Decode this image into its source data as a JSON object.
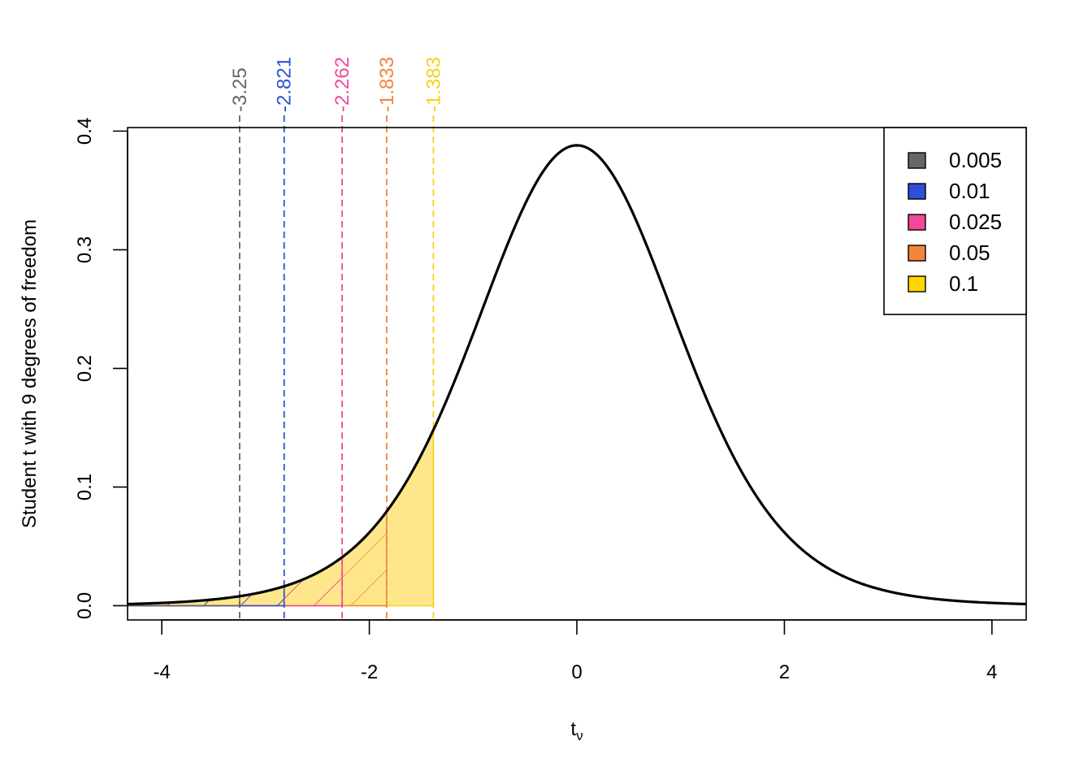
{
  "chart_data": {
    "type": "area",
    "distribution": "student-t",
    "df": 9,
    "xlabel": "t",
    "xlabel_sub": "ν",
    "ylabel": "Student t with 9 degrees of freedom",
    "xlim": [
      -4.33,
      4.33
    ],
    "ylim": [
      -0.012,
      0.403
    ],
    "x_ticks": [
      -4,
      -2,
      0,
      2,
      4
    ],
    "x_tick_labels": [
      "-4",
      "-2",
      "0",
      "2",
      "4"
    ],
    "y_ticks": [
      0.0,
      0.1,
      0.2,
      0.3,
      0.4
    ],
    "y_tick_labels": [
      "0.0",
      "0.1",
      "0.2",
      "0.3",
      "0.4"
    ],
    "peak_density": 0.388,
    "critical_values": [
      {
        "alpha": "0.005",
        "t": -3.25,
        "label": "-3.25",
        "color": "#666666",
        "fill": "hatch"
      },
      {
        "alpha": "0.01",
        "t": -2.821,
        "label": "-2.821",
        "color": "#2e4fd6",
        "fill": "hatch"
      },
      {
        "alpha": "0.025",
        "t": -2.262,
        "label": "-2.262",
        "color": "#f0489a",
        "fill": "hatch"
      },
      {
        "alpha": "0.05",
        "t": -1.833,
        "label": "-1.833",
        "color": "#f4843a",
        "fill": "hatch"
      },
      {
        "alpha": "0.1",
        "t": -1.383,
        "label": "-1.383",
        "color": "#f7d21a",
        "fill": "solid"
      }
    ],
    "legend": {
      "position": "top-right",
      "entries": [
        "0.005",
        "0.01",
        "0.025",
        "0.05",
        "0.1"
      ],
      "colors": [
        "#666666",
        "#2e4fd6",
        "#f0489a",
        "#f4843a",
        "#ffd700"
      ]
    },
    "colors": {
      "curve": "#000000",
      "solid_fill": "#fee78a"
    }
  }
}
